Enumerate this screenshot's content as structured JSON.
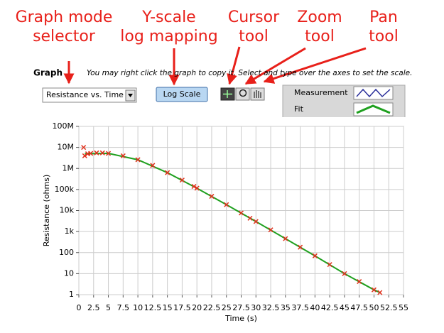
{
  "annotations": [
    {
      "lines": [
        "Graph mode",
        "selector"
      ]
    },
    {
      "lines": [
        "Y-scale",
        "log mapping"
      ]
    },
    {
      "lines": [
        "Cursor",
        "tool"
      ]
    },
    {
      "lines": [
        "Zoom",
        "tool"
      ]
    },
    {
      "lines": [
        "Pan",
        "tool"
      ]
    }
  ],
  "header": {
    "title": "Graph",
    "note": "You may right click the graph to copy it. Select and type over the axes to set the scale."
  },
  "controls": {
    "mode_selector": "Resistance vs. Time",
    "scale_button": "Log Scale"
  },
  "chart_data": {
    "type": "scatter",
    "x_label": "Time (s)",
    "y_label": "Resistance (ohms)",
    "xlim": [
      0,
      55
    ],
    "xticks": [
      0,
      2.5,
      5,
      7.5,
      10,
      12.5,
      15,
      17.5,
      20,
      22.5,
      25,
      27.5,
      30,
      32.5,
      35,
      37.5,
      40,
      42.5,
      45,
      47.5,
      50,
      52.5,
      55
    ],
    "ylim": [
      1,
      100000000
    ],
    "y_scale": "log",
    "yticks": [
      {
        "value": 1,
        "label": "1"
      },
      {
        "value": 10,
        "label": "10"
      },
      {
        "value": 100,
        "label": "100"
      },
      {
        "value": 1000,
        "label": "1k"
      },
      {
        "value": 10000,
        "label": "10k"
      },
      {
        "value": 100000,
        "label": "100k"
      },
      {
        "value": 1000000,
        "label": "1M"
      },
      {
        "value": 10000000,
        "label": "10M"
      },
      {
        "value": 100000000,
        "label": "100M"
      }
    ],
    "grid": true,
    "series": [
      {
        "name": "Measurement",
        "color": "#2a2f9a",
        "marker_color": "#e0301c",
        "x": [
          0.8,
          1,
          1.5,
          2,
          3,
          4,
          5,
          7.5,
          10,
          12.5,
          15,
          17.5,
          19.5,
          20,
          22.5,
          25,
          27.5,
          29,
          30,
          32.5,
          35,
          37.5,
          40,
          42.5,
          45,
          47.5,
          50,
          51
        ],
        "values": [
          10000000,
          4000000,
          5000000,
          5200000,
          5500000,
          5500000,
          5200000,
          4000000,
          2600000,
          1400000,
          630000,
          280000,
          140000,
          115000,
          47000,
          19000,
          7600,
          4300,
          3000,
          1200,
          460,
          180,
          70,
          27,
          10,
          4.2,
          1.7,
          1.26
        ]
      },
      {
        "name": "Fit",
        "color": "#1fa01f",
        "x": [
          1,
          5,
          10,
          15,
          20,
          25,
          30,
          35,
          40,
          45,
          50,
          51
        ],
        "values": [
          5000000,
          5200000,
          2600000,
          630000,
          115000,
          19000,
          3000,
          460,
          70,
          10,
          1.7,
          1.26
        ]
      }
    ]
  }
}
